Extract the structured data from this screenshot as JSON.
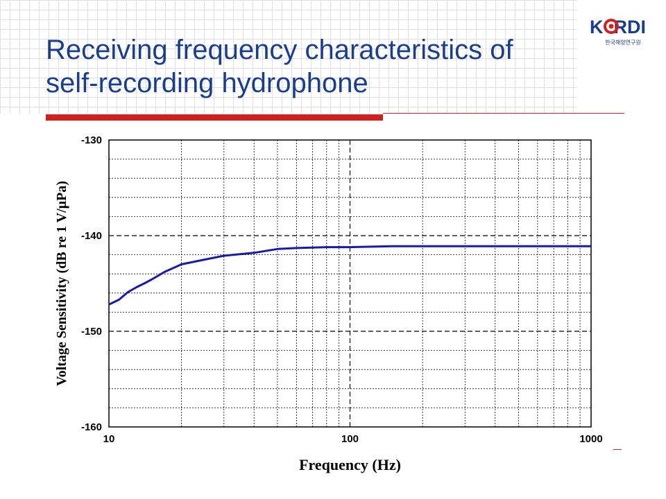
{
  "slide": {
    "title_line1": "Receiving frequency characteristics of",
    "title_line2": "self-recording hydrophone"
  },
  "logo": {
    "wordmark": "K  RDI",
    "subtitle": "한국해양연구원",
    "brand_color": "#1a3e8c",
    "mark_color": "#d22020"
  },
  "colors": {
    "title": "#1a3e8c",
    "accent_rule": "#d22020",
    "curve": "#1a1aa8"
  },
  "chart_data": {
    "type": "line",
    "title": "",
    "xlabel": "Frequency (Hz)",
    "ylabel": "Voltage Sensitivity (dB re 1 V/μPa)",
    "x_scale": "log",
    "xlim": [
      10,
      1000
    ],
    "ylim": [
      -160,
      -130
    ],
    "x_ticks": [
      10,
      100,
      1000
    ],
    "x_tick_labels": [
      "10",
      "100",
      "1000"
    ],
    "y_ticks": [
      -130,
      -140,
      -150,
      -160
    ],
    "y_tick_labels": [
      "-130",
      "-140",
      "-150",
      "-160"
    ],
    "grid": true,
    "legend": "none",
    "series": [
      {
        "x": [
          10,
          11,
          12,
          13,
          14,
          15,
          17,
          20,
          25,
          30,
          40,
          50,
          60,
          80,
          100,
          150,
          200,
          300,
          500,
          700,
          1000
        ],
        "y": [
          -147.2,
          -146.7,
          -145.9,
          -145.4,
          -145.0,
          -144.6,
          -143.8,
          -143.0,
          -142.5,
          -142.1,
          -141.8,
          -141.4,
          -141.3,
          -141.2,
          -141.2,
          -141.1,
          -141.1,
          -141.1,
          -141.1,
          -141.1,
          -141.1
        ]
      }
    ]
  }
}
